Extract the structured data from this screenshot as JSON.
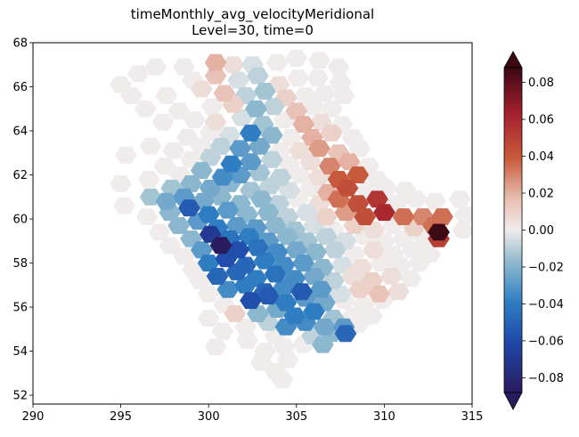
{
  "title": "timeMonthly_avg_velocityMeridional",
  "subtitle": "Level=30, time=0",
  "chart_data": {
    "type": "heatmap",
    "title": "timeMonthly_avg_velocityMeridional",
    "subtitle": "Level=30, time=0",
    "xlabel": "",
    "ylabel": "",
    "xlim": [
      290,
      315
    ],
    "ylim": [
      51.6,
      68
    ],
    "x_ticks": [
      "290",
      "295",
      "300",
      "305",
      "310",
      "315"
    ],
    "y_ticks": [
      "52",
      "54",
      "56",
      "58",
      "60",
      "62",
      "64",
      "66",
      "68"
    ],
    "colormap": "balance (diverging: dark blue - light grey - dark red)",
    "color_range": [
      -0.088,
      0.088
    ],
    "colorbar_ticks": [
      "0.08",
      "0.06",
      "0.04",
      "0.02",
      "0.00",
      "−0.02",
      "−0.04",
      "−0.06",
      "−0.08"
    ],
    "colorbar_extend": "both",
    "grid": false,
    "marker": "hexagon",
    "points": [
      [
        300.4,
        67.1,
        0.02
      ],
      [
        301.4,
        67.0,
        0.005
      ],
      [
        302.5,
        67.0,
        -0.005
      ],
      [
        303.9,
        67.1,
        0.0
      ],
      [
        305.0,
        67.3,
        0.0
      ],
      [
        306.3,
        67.2,
        0.0
      ],
      [
        307.4,
        66.9,
        0.0
      ],
      [
        298.6,
        66.9,
        0.0
      ],
      [
        297.0,
        66.9,
        0.0
      ],
      [
        300.4,
        66.5,
        0.015
      ],
      [
        301.7,
        66.3,
        -0.005
      ],
      [
        302.8,
        66.5,
        -0.01
      ],
      [
        304.0,
        66.1,
        0.005
      ],
      [
        305.1,
        66.4,
        0.0
      ],
      [
        306.2,
        66.4,
        0.0
      ],
      [
        295.0,
        66.1,
        0.0
      ],
      [
        296.0,
        66.6,
        0.0
      ],
      [
        299.1,
        66.3,
        0.0
      ],
      [
        307.5,
        66.2,
        0.0
      ],
      [
        299.6,
        65.9,
        0.005
      ],
      [
        300.9,
        65.7,
        0.015
      ],
      [
        302.1,
        65.6,
        -0.01
      ],
      [
        303.2,
        65.8,
        -0.015
      ],
      [
        304.4,
        65.5,
        0.01
      ],
      [
        305.5,
        65.6,
        0.0
      ],
      [
        306.6,
        65.7,
        0.0
      ],
      [
        295.6,
        65.6,
        0.0
      ],
      [
        297.6,
        65.6,
        0.0
      ],
      [
        307.7,
        65.6,
        0.0
      ],
      [
        300.2,
        65.1,
        0.0
      ],
      [
        301.4,
        65.2,
        0.01
      ],
      [
        302.7,
        65.0,
        -0.02
      ],
      [
        303.7,
        65.1,
        -0.01
      ],
      [
        305.0,
        64.9,
        0.015
      ],
      [
        306.0,
        65.1,
        0.0
      ],
      [
        307.0,
        65.0,
        0.0
      ],
      [
        296.4,
        65.0,
        0.0
      ],
      [
        298.3,
        64.9,
        0.0
      ],
      [
        299.2,
        64.5,
        0.0
      ],
      [
        300.4,
        64.4,
        0.005
      ],
      [
        301.9,
        64.6,
        -0.005
      ],
      [
        303.1,
        64.3,
        -0.015
      ],
      [
        304.3,
        64.5,
        0.0
      ],
      [
        305.4,
        64.3,
        0.02
      ],
      [
        306.4,
        64.4,
        0.005
      ],
      [
        307.6,
        64.3,
        0.0
      ],
      [
        297.4,
        64.4,
        0.0
      ],
      [
        300.1,
        63.9,
        0.0
      ],
      [
        301.2,
        63.8,
        -0.005
      ],
      [
        302.4,
        63.9,
        -0.04
      ],
      [
        303.6,
        63.8,
        -0.02
      ],
      [
        304.7,
        63.7,
        0.0
      ],
      [
        305.9,
        63.7,
        0.02
      ],
      [
        307.0,
        63.9,
        0.01
      ],
      [
        308.2,
        63.7,
        0.0
      ],
      [
        298.8,
        63.7,
        0.0
      ],
      [
        299.6,
        63.3,
        0.0
      ],
      [
        300.7,
        63.3,
        -0.01
      ],
      [
        301.8,
        63.2,
        -0.03
      ],
      [
        302.9,
        63.3,
        -0.025
      ],
      [
        304.1,
        63.1,
        0.0
      ],
      [
        305.2,
        63.1,
        0.005
      ],
      [
        306.3,
        63.2,
        0.025
      ],
      [
        307.4,
        63.0,
        0.015
      ],
      [
        308.6,
        63.2,
        0.0
      ],
      [
        296.7,
        63.3,
        0.0
      ],
      [
        298.0,
        63.1,
        0.0
      ],
      [
        299.0,
        62.7,
        0.0
      ],
      [
        300.1,
        62.8,
        -0.01
      ],
      [
        301.3,
        62.5,
        -0.04
      ],
      [
        302.4,
        62.6,
        -0.03
      ],
      [
        303.6,
        62.7,
        -0.01
      ],
      [
        304.6,
        62.5,
        0.0
      ],
      [
        305.8,
        62.6,
        0.005
      ],
      [
        306.9,
        62.4,
        0.03
      ],
      [
        308.0,
        62.6,
        0.02
      ],
      [
        309.1,
        62.4,
        0.0
      ],
      [
        295.3,
        62.9,
        0.0
      ],
      [
        297.5,
        62.4,
        0.0
      ],
      [
        298.4,
        62.0,
        0.0
      ],
      [
        299.6,
        62.2,
        -0.02
      ],
      [
        300.8,
        61.9,
        -0.035
      ],
      [
        301.8,
        62.0,
        -0.03
      ],
      [
        302.9,
        62.1,
        -0.015
      ],
      [
        304.1,
        61.9,
        -0.01
      ],
      [
        305.2,
        62.0,
        0.0
      ],
      [
        306.3,
        61.9,
        0.005
      ],
      [
        307.4,
        61.8,
        0.04
      ],
      [
        308.5,
        62.0,
        0.04
      ],
      [
        309.6,
        61.8,
        0.0
      ],
      [
        296.6,
        61.8,
        0.0
      ],
      [
        297.9,
        61.4,
        -0.015
      ],
      [
        299.0,
        61.6,
        -0.02
      ],
      [
        300.1,
        61.4,
        -0.025
      ],
      [
        301.2,
        61.6,
        -0.02
      ],
      [
        302.4,
        61.3,
        -0.015
      ],
      [
        303.5,
        61.5,
        -0.01
      ],
      [
        304.6,
        61.3,
        -0.005
      ],
      [
        305.8,
        61.4,
        0.0
      ],
      [
        306.8,
        61.2,
        0.02
      ],
      [
        307.9,
        61.4,
        0.045
      ],
      [
        309.0,
        61.3,
        0.0
      ],
      [
        310.1,
        61.4,
        0.0
      ],
      [
        311.2,
        61.3,
        0.0
      ],
      [
        295.0,
        61.6,
        0.0
      ],
      [
        296.7,
        61.0,
        -0.015
      ],
      [
        297.6,
        60.8,
        -0.025
      ],
      [
        298.6,
        61.0,
        -0.03
      ],
      [
        299.7,
        60.8,
        -0.025
      ],
      [
        300.7,
        61.0,
        -0.02
      ],
      [
        301.8,
        60.7,
        -0.02
      ],
      [
        303.0,
        60.9,
        -0.02
      ],
      [
        304.0,
        60.7,
        -0.01
      ],
      [
        305.1,
        60.9,
        0.0
      ],
      [
        306.3,
        60.7,
        0.005
      ],
      [
        307.4,
        60.9,
        0.035
      ],
      [
        308.5,
        60.7,
        0.045
      ],
      [
        309.6,
        60.9,
        0.055
      ],
      [
        310.7,
        60.7,
        0.0
      ],
      [
        311.8,
        60.9,
        0.0
      ],
      [
        312.9,
        60.8,
        0.0
      ],
      [
        314.3,
        60.9,
        0.0
      ],
      [
        295.2,
        60.6,
        0.0
      ],
      [
        297.8,
        60.3,
        -0.02
      ],
      [
        298.9,
        60.5,
        -0.055
      ],
      [
        300.0,
        60.2,
        -0.04
      ],
      [
        301.1,
        60.4,
        -0.03
      ],
      [
        302.2,
        60.2,
        -0.02
      ],
      [
        303.4,
        60.3,
        -0.02
      ],
      [
        304.5,
        60.1,
        -0.01
      ],
      [
        305.6,
        60.3,
        -0.005
      ],
      [
        306.7,
        60.1,
        0.01
      ],
      [
        307.8,
        60.3,
        0.025
      ],
      [
        308.9,
        60.1,
        0.045
      ],
      [
        310.0,
        60.3,
        0.06
      ],
      [
        311.1,
        60.1,
        0.035
      ],
      [
        312.2,
        60.1,
        0.03
      ],
      [
        313.3,
        60.1,
        0.035
      ],
      [
        314.6,
        60.2,
        0.0
      ],
      [
        296.5,
        60.1,
        0.0
      ],
      [
        298.3,
        59.7,
        -0.02
      ],
      [
        299.4,
        59.9,
        -0.03
      ],
      [
        300.5,
        59.6,
        -0.04
      ],
      [
        301.6,
        59.7,
        -0.03
      ],
      [
        302.7,
        59.6,
        -0.03
      ],
      [
        303.8,
        59.7,
        -0.02
      ],
      [
        304.9,
        59.5,
        -0.015
      ],
      [
        306.0,
        59.7,
        -0.005
      ],
      [
        307.1,
        59.5,
        0.0
      ],
      [
        308.3,
        59.7,
        0.01
      ],
      [
        309.4,
        59.5,
        0.005
      ],
      [
        310.5,
        59.7,
        0.0
      ],
      [
        311.7,
        59.6,
        0.01
      ],
      [
        312.8,
        59.7,
        0.035
      ],
      [
        313.1,
        59.4,
        0.088
      ],
      [
        314.5,
        59.5,
        0.0
      ],
      [
        297.2,
        59.4,
        0.0
      ],
      [
        299.0,
        59.1,
        -0.02
      ],
      [
        300.1,
        59.3,
        -0.07
      ],
      [
        301.2,
        59.1,
        -0.045
      ],
      [
        302.3,
        59.2,
        -0.04
      ],
      [
        303.4,
        59.0,
        -0.03
      ],
      [
        304.5,
        59.2,
        -0.02
      ],
      [
        305.6,
        59.0,
        -0.015
      ],
      [
        306.7,
        59.2,
        -0.01
      ],
      [
        307.8,
        59.0,
        -0.005
      ],
      [
        308.9,
        59.2,
        0.0
      ],
      [
        310.0,
        59.0,
        0.0
      ],
      [
        311.1,
        59.1,
        0.0
      ],
      [
        312.3,
        59.1,
        0.0
      ],
      [
        313.1,
        59.1,
        0.05
      ],
      [
        297.8,
        58.8,
        0.0
      ],
      [
        299.6,
        58.6,
        -0.03
      ],
      [
        300.7,
        58.8,
        -0.088
      ],
      [
        301.7,
        58.6,
        -0.06
      ],
      [
        302.8,
        58.7,
        -0.045
      ],
      [
        303.9,
        58.5,
        -0.035
      ],
      [
        305.0,
        58.6,
        -0.025
      ],
      [
        306.1,
        58.5,
        -0.02
      ],
      [
        307.2,
        58.6,
        -0.01
      ],
      [
        308.3,
        58.4,
        0.0
      ],
      [
        309.4,
        58.6,
        0.005
      ],
      [
        310.5,
        58.4,
        0.0
      ],
      [
        311.6,
        58.6,
        0.0
      ],
      [
        312.6,
        58.4,
        0.0
      ],
      [
        298.6,
        58.3,
        0.0
      ],
      [
        300.0,
        58.0,
        -0.04
      ],
      [
        301.0,
        58.2,
        -0.06
      ],
      [
        302.1,
        57.9,
        -0.05
      ],
      [
        303.2,
        58.1,
        -0.04
      ],
      [
        304.3,
        57.9,
        -0.035
      ],
      [
        305.4,
        58.0,
        -0.03
      ],
      [
        306.5,
        57.8,
        -0.02
      ],
      [
        307.6,
        57.9,
        -0.005
      ],
      [
        308.7,
        57.8,
        0.005
      ],
      [
        309.8,
        58.0,
        0.0
      ],
      [
        310.9,
        57.9,
        0.0
      ],
      [
        312.0,
        58.0,
        0.0
      ],
      [
        299.1,
        57.7,
        0.0
      ],
      [
        300.5,
        57.4,
        -0.05
      ],
      [
        301.6,
        57.6,
        -0.05
      ],
      [
        302.7,
        57.3,
        -0.04
      ],
      [
        303.8,
        57.5,
        -0.045
      ],
      [
        304.9,
        57.3,
        -0.035
      ],
      [
        306.0,
        57.4,
        -0.025
      ],
      [
        307.1,
        57.2,
        -0.01
      ],
      [
        308.2,
        57.4,
        0.005
      ],
      [
        309.3,
        57.2,
        0.01
      ],
      [
        310.4,
        57.4,
        0.005
      ],
      [
        311.5,
        57.3,
        0.0
      ],
      [
        299.5,
        57.2,
        0.0
      ],
      [
        301.1,
        56.8,
        -0.035
      ],
      [
        302.1,
        57.0,
        -0.04
      ],
      [
        303.2,
        56.7,
        -0.05
      ],
      [
        304.3,
        56.9,
        -0.035
      ],
      [
        305.3,
        56.7,
        -0.055
      ],
      [
        306.4,
        56.8,
        -0.03
      ],
      [
        307.5,
        56.6,
        -0.005
      ],
      [
        308.6,
        56.8,
        0.01
      ],
      [
        309.7,
        56.6,
        0.015
      ],
      [
        310.8,
        56.7,
        0.005
      ],
      [
        300.0,
        56.6,
        0.0
      ],
      [
        302.4,
        56.3,
        -0.06
      ],
      [
        303.4,
        56.5,
        -0.055
      ],
      [
        304.4,
        56.2,
        -0.04
      ],
      [
        305.5,
        56.4,
        -0.03
      ],
      [
        306.6,
        56.2,
        -0.025
      ],
      [
        307.7,
        56.3,
        0.0
      ],
      [
        308.8,
        56.1,
        0.0
      ],
      [
        309.9,
        56.3,
        0.0
      ],
      [
        300.9,
        56.1,
        0.0
      ],
      [
        301.5,
        55.7,
        0.01
      ],
      [
        302.8,
        55.7,
        -0.02
      ],
      [
        303.9,
        55.9,
        -0.025
      ],
      [
        304.9,
        55.6,
        -0.04
      ],
      [
        306.0,
        55.8,
        -0.04
      ],
      [
        307.1,
        55.5,
        -0.015
      ],
      [
        308.2,
        55.6,
        0.0
      ],
      [
        309.3,
        55.6,
        0.0
      ],
      [
        300.0,
        55.5,
        0.0
      ],
      [
        303.4,
        55.3,
        -0.01
      ],
      [
        304.4,
        55.1,
        -0.035
      ],
      [
        305.5,
        55.3,
        -0.035
      ],
      [
        306.6,
        55.1,
        -0.025
      ],
      [
        307.7,
        55.1,
        -0.03
      ],
      [
        302.1,
        55.1,
        0.0
      ],
      [
        300.8,
        54.9,
        0.0
      ],
      [
        308.5,
        55.2,
        0.0
      ],
      [
        303.8,
        54.7,
        0.0
      ],
      [
        305.9,
        54.7,
        -0.01
      ],
      [
        307.0,
        54.8,
        -0.02
      ],
      [
        307.8,
        54.8,
        -0.05
      ],
      [
        302.2,
        54.5,
        0.0
      ],
      [
        300.4,
        54.2,
        0.0
      ],
      [
        304.3,
        54.2,
        0.0
      ],
      [
        305.4,
        54.3,
        0.0
      ],
      [
        306.5,
        54.3,
        -0.02
      ],
      [
        303.2,
        54.0,
        0.0
      ],
      [
        303.0,
        53.5,
        0.0
      ],
      [
        304.5,
        53.6,
        0.0
      ],
      [
        303.8,
        53.1,
        0.0
      ],
      [
        304.2,
        52.7,
        0.0
      ]
    ]
  }
}
